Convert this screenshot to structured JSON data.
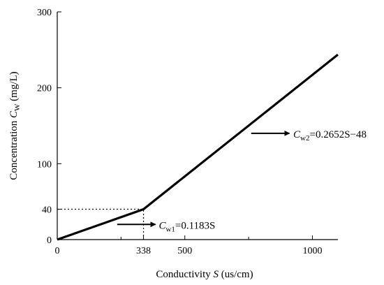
{
  "chart_data": {
    "type": "line",
    "xlabel": {
      "text": "Conductivity ",
      "var": "S",
      "unit": " (us/cm)"
    },
    "ylabel": {
      "text": "Concentration ",
      "var": "C",
      "sub": "W",
      "unit": " (mg/L)"
    },
    "xlim": [
      0,
      1100
    ],
    "ylim": [
      0,
      300
    ],
    "x_ticks": [
      0,
      338,
      500,
      1000
    ],
    "x_minor_ticks": [
      250,
      750
    ],
    "y_ticks": [
      0,
      40,
      100,
      200,
      300
    ],
    "grid": false,
    "series": [
      {
        "x": [
          0,
          338,
          1100
        ],
        "y": [
          0,
          40,
          243.7
        ]
      }
    ],
    "reference_lines": [
      {
        "type": "dotted",
        "x1": 0,
        "y1": 40,
        "x2": 338,
        "y2": 40
      },
      {
        "type": "dotted",
        "x1": 338,
        "y1": 0,
        "x2": 338,
        "y2": 40
      }
    ],
    "annotations": [
      {
        "var": "C",
        "sub": "w1",
        "rest": "=0.1183S",
        "arrow_from": [
          235,
          20
        ],
        "arrow_to": [
          385,
          20
        ],
        "text_at": [
          398,
          20
        ]
      },
      {
        "var": "C",
        "sub": "w2",
        "rest": "=0.2652S−48",
        "arrow_from": [
          760,
          140
        ],
        "arrow_to": [
          910,
          140
        ],
        "text_at": [
          925,
          140
        ]
      }
    ]
  }
}
